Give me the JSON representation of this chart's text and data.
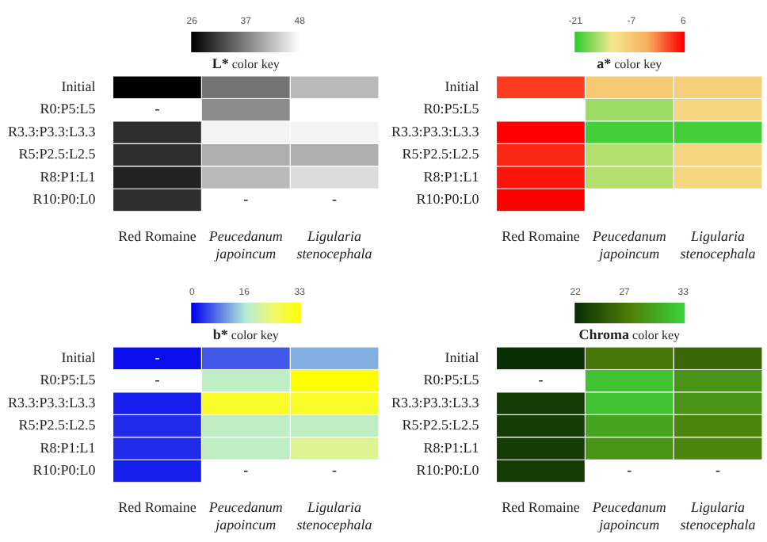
{
  "chart_data": [
    {
      "type": "heatmap",
      "clabel": "L* color key",
      "categories": [
        "Red Romaine",
        "Peucedanum japoincum",
        "Ligularia stenocephala"
      ],
      "y_categories": [
        "Initial",
        "R0:P5:L5",
        "R3.3:P3.3:L3.3",
        "R5:P2.5:L2.5",
        "R8:P1:L1",
        "R10:P0:L0"
      ],
      "cells": [
        [
          26,
          36,
          42
        ],
        [
          null,
          38,
          48
        ],
        [
          30,
          47,
          47
        ],
        [
          30,
          41,
          41
        ],
        [
          29,
          42,
          45
        ],
        [
          30,
          null,
          null
        ]
      ],
      "cell_labels": [
        [
          null,
          null,
          null
        ],
        [
          "-",
          null,
          null
        ],
        [
          null,
          null,
          null
        ],
        [
          null,
          null,
          null
        ],
        [
          null,
          null,
          null
        ],
        [
          null,
          "-",
          "-"
        ]
      ],
      "clim": [
        26,
        48
      ],
      "cticks": [
        26,
        37,
        48
      ]
    },
    {
      "type": "heatmap",
      "clabel": "a* color key",
      "categories": [
        "Red Romaine",
        "Peucedanum japoincum",
        "Ligularia stenocephala"
      ],
      "y_categories": [
        "Initial",
        "R0:P5:L5",
        "R3.3:P3.3:L3.3",
        "R5:P2.5:L2.5",
        "R8:P1:L1",
        "R10:P0:L0"
      ],
      "cells": [
        [
          3,
          -7,
          -8
        ],
        [
          null,
          -16,
          -9
        ],
        [
          6,
          -20,
          -20
        ],
        [
          4,
          -15,
          -9
        ],
        [
          5,
          -15,
          -9
        ],
        [
          6,
          null,
          null
        ]
      ],
      "clim": [
        -21,
        6
      ],
      "cticks": [
        -21,
        -7,
        6
      ]
    },
    {
      "type": "heatmap",
      "clabel": "b* color key",
      "categories": [
        "Red Romaine",
        "Peucedanum japoincum",
        "Ligularia stenocephala"
      ],
      "y_categories": [
        "Initial",
        "R0:P5:L5",
        "R3.3:P3.3:L3.3",
        "R5:P2.5:L2.5",
        "R8:P1:L1",
        "R10:P0:L0"
      ],
      "cells": [
        [
          1,
          6,
          12
        ],
        [
          null,
          18,
          33
        ],
        [
          2,
          30,
          30
        ],
        [
          3,
          18,
          18
        ],
        [
          3,
          18,
          22
        ],
        [
          2,
          null,
          null
        ]
      ],
      "cell_labels": [
        [
          "-",
          null,
          null
        ],
        [
          "-",
          null,
          null
        ],
        [
          null,
          null,
          null
        ],
        [
          null,
          null,
          null
        ],
        [
          null,
          null,
          null
        ],
        [
          null,
          "-",
          "-"
        ]
      ],
      "clim": [
        0,
        33
      ],
      "cticks": [
        0,
        16,
        33
      ]
    },
    {
      "type": "heatmap",
      "clabel": "Chroma color key",
      "categories": [
        "Red Romaine",
        "Peucedanum japoincum",
        "Ligularia stenocephala"
      ],
      "y_categories": [
        "Initial",
        "R0:P5:L5",
        "R3.3:P3.3:L3.3",
        "R5:P2.5:L2.5",
        "R8:P1:L1",
        "R10:P0:L0"
      ],
      "cells": [
        [
          22,
          27,
          26
        ],
        [
          null,
          32,
          29
        ],
        [
          23,
          32,
          29
        ],
        [
          23,
          30,
          28
        ],
        [
          23,
          29,
          28
        ],
        [
          23,
          null,
          null
        ]
      ],
      "cell_labels": [
        [
          null,
          null,
          null
        ],
        [
          "-",
          null,
          null
        ],
        [
          null,
          null,
          null
        ],
        [
          null,
          null,
          null
        ],
        [
          null,
          null,
          null
        ],
        [
          null,
          "-",
          "-"
        ]
      ],
      "clim": [
        22,
        33
      ],
      "cticks": [
        22,
        27,
        33
      ]
    }
  ]
}
